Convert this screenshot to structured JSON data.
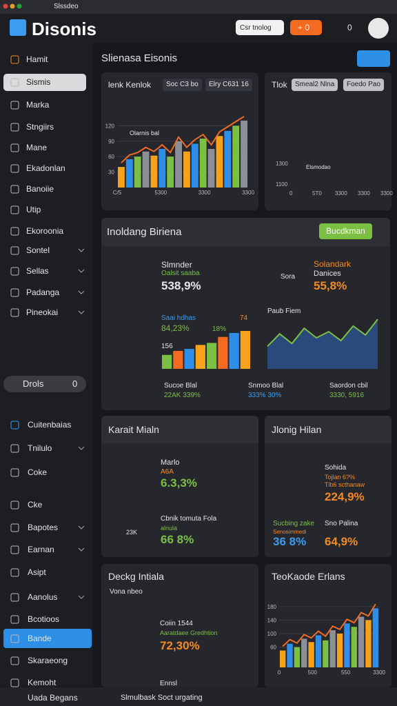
{
  "browser": {
    "tab": "Slssdeo"
  },
  "header": {
    "title": "Disonis",
    "select": "Csr tnolog",
    "button": "+ 0",
    "count": "0"
  },
  "sidebar": {
    "items": [
      "Hamit",
      "Sismis",
      "Marka",
      "Stngiirs",
      "Mane",
      "Ekadonlan",
      "Banoiie",
      "Utip",
      "Ekoroonia",
      "Sontel",
      "Sellas",
      "Padanga",
      "Pineokai"
    ],
    "toggle": "Drols",
    "toggle_count": "0",
    "items2": [
      "Cuitenbaias",
      "Tnilulo",
      "Coke",
      "Cke",
      "Bapotes",
      "Earnan",
      "Asipt",
      "Aanolus",
      "Bcotioos",
      "Bande",
      "Skaraeong",
      "Kemoht"
    ]
  },
  "main": {
    "title": "Slienasa Eisonis",
    "revenue": {
      "type": "bar",
      "title": "lenk Kenlok",
      "tabs": [
        "Soc C3 bo",
        "Elry C631 16"
      ],
      "annotation": "Olarnis bal",
      "xlabels": [
        "C/5",
        "5300",
        "3300",
        "3300"
      ],
      "ylim": [
        0,
        150
      ],
      "yticks": [
        30,
        60,
        90,
        120
      ],
      "colors": [
        "#f7a21b",
        "#2f8fe8",
        "#7bc043",
        "#8a8f98"
      ],
      "values": [
        40,
        55,
        60,
        70,
        62,
        75,
        60,
        90,
        70,
        85,
        95,
        75,
        100,
        110,
        120,
        130
      ]
    },
    "map": {
      "title": "Tlok",
      "tabs": [
        "Smeal2 Nlna",
        "Foedo Pao"
      ],
      "annotation": "Elsmodao",
      "xlabels": [
        "0",
        "5T0",
        "3300",
        "3300",
        "3300"
      ],
      "ylabels": [
        "1300",
        "1100"
      ]
    },
    "overview": {
      "title": "Inoldang Biriena",
      "button": "Bucdkman",
      "kpi1": {
        "name": "Slmnder",
        "sub": "Oalsit saaba",
        "value": "538,9%"
      },
      "kpi2": {
        "ring": "Sora",
        "name": "Solandark",
        "sub": "Danices",
        "value": "55,8%"
      },
      "bars": {
        "type": "bar",
        "name": "Saai hdhas",
        "value": "84,23%",
        "labels": [
          "18%",
          "74",
          "156"
        ],
        "colors": [
          "#7bc043",
          "#f26b21",
          "#2f8fe8",
          "#f7a21b"
        ],
        "values": [
          35,
          45,
          50,
          60,
          65,
          80,
          90,
          95
        ]
      },
      "trend": {
        "type": "line",
        "title": "Paub Fiem",
        "color": "#7bc043",
        "values": [
          40,
          62,
          45,
          72,
          55,
          66,
          50,
          76,
          60,
          88
        ]
      },
      "stats": [
        {
          "name": "Sucoe Blal",
          "value": "22AK 339%"
        },
        {
          "name": "Snmoo Blal",
          "value": "333% 30%"
        },
        {
          "name": "Saordon cbil",
          "value": "3330, 5916"
        }
      ]
    },
    "karait": {
      "title": "Karait Mialn",
      "a": {
        "name": "Marlo",
        "sub": "A6A",
        "value": "6.3,3%"
      },
      "b": {
        "ring": "23K",
        "name": "Cbnik tomuta Fola",
        "sub": "alnula",
        "value": "66 8%"
      }
    },
    "jlonig": {
      "title": "Jlonig Hilan",
      "name": "Sohida",
      "sub1": "Tojlan 6?%",
      "sub2": "Tlb6 scthanaw",
      "value": "224,9%",
      "left": {
        "name": "Sucbing zake",
        "sub": "Senosimmedi",
        "value": "36 8%"
      },
      "right": {
        "name": "Sno Palina",
        "value": "64,9%"
      }
    },
    "deckg": {
      "title": "Deckg Intiala",
      "sub": "Vona nbeo",
      "name": "Coiin 1544",
      "desc": "Aaratdaee Gredhtion",
      "value": "72,30%",
      "next": "Ennsl"
    },
    "teokaode": {
      "type": "bar",
      "title": "TeoKaode Erlans",
      "xlabels": [
        "0",
        "500",
        "550",
        "3300"
      ],
      "ylim": [
        0,
        200
      ],
      "yticks": [
        60,
        100,
        140,
        180
      ],
      "colors": [
        "#f7a21b",
        "#2f8fe8",
        "#7bc043",
        "#8a8f98"
      ],
      "values": [
        50,
        70,
        60,
        85,
        75,
        95,
        80,
        110,
        100,
        130,
        120,
        150,
        140,
        175
      ]
    }
  },
  "footer": {
    "user": "Uada Begans",
    "status": "Slmulbask Soct urgating"
  }
}
